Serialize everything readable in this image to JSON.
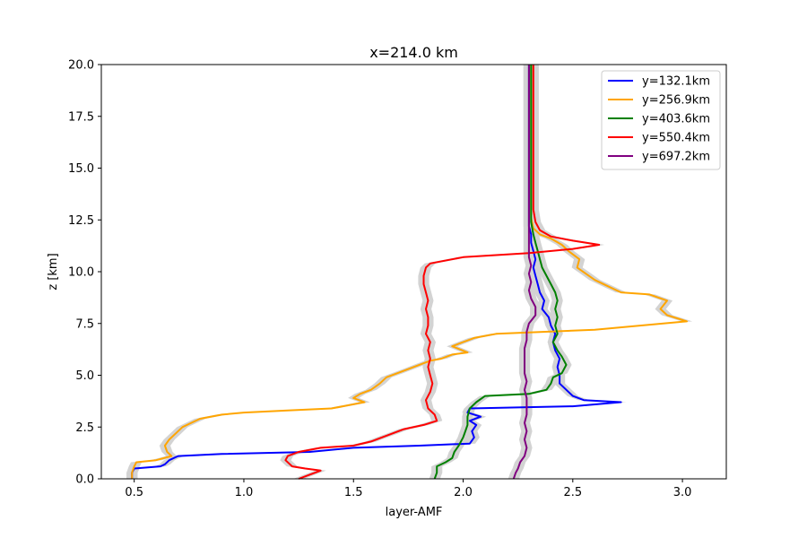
{
  "chart_data": {
    "type": "line",
    "title": "x=214.0 km",
    "xlabel": "layer-AMF",
    "ylabel": "z [km]",
    "xlim": [
      0.35,
      3.2
    ],
    "ylim": [
      0,
      20
    ],
    "xticks": [
      "0.5",
      "1.0",
      "1.5",
      "2.0",
      "2.5",
      "3.0"
    ],
    "yticks": [
      "0.0",
      "2.5",
      "5.0",
      "7.5",
      "10.0",
      "12.5",
      "15.0",
      "17.5",
      "20.0"
    ],
    "grid": false,
    "legend_position": "top-right",
    "uncertainty_band_color": "#d3d3d3",
    "series": [
      {
        "name": "y=132.1km",
        "color": "#0000ff",
        "points": [
          [
            0.49,
            0.0
          ],
          [
            0.49,
            0.3
          ],
          [
            0.5,
            0.5
          ],
          [
            0.62,
            0.6
          ],
          [
            0.64,
            0.7
          ],
          [
            0.66,
            0.9
          ],
          [
            0.7,
            1.1
          ],
          [
            0.9,
            1.2
          ],
          [
            1.3,
            1.3
          ],
          [
            1.5,
            1.5
          ],
          [
            1.8,
            1.6
          ],
          [
            2.03,
            1.7
          ],
          [
            2.05,
            2.0
          ],
          [
            2.04,
            2.3
          ],
          [
            2.06,
            2.6
          ],
          [
            2.03,
            2.8
          ],
          [
            2.08,
            3.0
          ],
          [
            2.02,
            3.2
          ],
          [
            2.03,
            3.4
          ],
          [
            2.5,
            3.5
          ],
          [
            2.72,
            3.7
          ],
          [
            2.55,
            3.8
          ],
          [
            2.5,
            4.0
          ],
          [
            2.47,
            4.3
          ],
          [
            2.44,
            4.6
          ],
          [
            2.44,
            5.0
          ],
          [
            2.43,
            5.4
          ],
          [
            2.44,
            5.8
          ],
          [
            2.42,
            6.2
          ],
          [
            2.41,
            6.6
          ],
          [
            2.42,
            7.0
          ],
          [
            2.4,
            7.4
          ],
          [
            2.39,
            7.8
          ],
          [
            2.36,
            8.2
          ],
          [
            2.37,
            8.6
          ],
          [
            2.35,
            9.0
          ],
          [
            2.34,
            9.4
          ],
          [
            2.33,
            9.8
          ],
          [
            2.32,
            10.2
          ],
          [
            2.33,
            10.6
          ],
          [
            2.32,
            11.0
          ],
          [
            2.31,
            11.4
          ],
          [
            2.31,
            11.8
          ],
          [
            2.3,
            12.2
          ],
          [
            2.3,
            13.0
          ],
          [
            2.3,
            14.0
          ],
          [
            2.3,
            15.0
          ],
          [
            2.3,
            16.0
          ],
          [
            2.3,
            17.0
          ],
          [
            2.3,
            18.0
          ],
          [
            2.3,
            19.0
          ],
          [
            2.3,
            20.0
          ]
        ]
      },
      {
        "name": "y=256.9km",
        "color": "#ffa500",
        "points": [
          [
            0.49,
            0.0
          ],
          [
            0.49,
            0.3
          ],
          [
            0.5,
            0.6
          ],
          [
            0.51,
            0.8
          ],
          [
            0.6,
            0.9
          ],
          [
            0.67,
            1.1
          ],
          [
            0.65,
            1.3
          ],
          [
            0.64,
            1.6
          ],
          [
            0.66,
            1.9
          ],
          [
            0.69,
            2.2
          ],
          [
            0.72,
            2.5
          ],
          [
            0.76,
            2.7
          ],
          [
            0.8,
            2.9
          ],
          [
            0.9,
            3.1
          ],
          [
            1.0,
            3.2
          ],
          [
            1.2,
            3.3
          ],
          [
            1.4,
            3.4
          ],
          [
            1.55,
            3.7
          ],
          [
            1.5,
            3.9
          ],
          [
            1.53,
            4.1
          ],
          [
            1.58,
            4.3
          ],
          [
            1.62,
            4.6
          ],
          [
            1.65,
            4.9
          ],
          [
            1.7,
            5.1
          ],
          [
            1.75,
            5.3
          ],
          [
            1.8,
            5.5
          ],
          [
            1.85,
            5.7
          ],
          [
            1.9,
            5.8
          ],
          [
            1.95,
            6.0
          ],
          [
            2.02,
            6.1
          ],
          [
            1.95,
            6.4
          ],
          [
            2.0,
            6.6
          ],
          [
            2.05,
            6.8
          ],
          [
            2.15,
            7.0
          ],
          [
            2.6,
            7.2
          ],
          [
            3.02,
            7.6
          ],
          [
            2.93,
            7.9
          ],
          [
            2.9,
            8.2
          ],
          [
            2.93,
            8.6
          ],
          [
            2.85,
            8.9
          ],
          [
            2.72,
            9.0
          ],
          [
            2.66,
            9.3
          ],
          [
            2.6,
            9.6
          ],
          [
            2.56,
            9.9
          ],
          [
            2.52,
            10.2
          ],
          [
            2.53,
            10.6
          ],
          [
            2.48,
            11.0
          ],
          [
            2.45,
            11.3
          ],
          [
            2.4,
            11.6
          ],
          [
            2.35,
            11.8
          ],
          [
            2.32,
            12.1
          ],
          [
            2.31,
            12.6
          ],
          [
            2.31,
            13.5
          ],
          [
            2.31,
            14.5
          ],
          [
            2.31,
            15.5
          ],
          [
            2.31,
            16.5
          ],
          [
            2.31,
            17.5
          ],
          [
            2.31,
            18.5
          ],
          [
            2.31,
            19.5
          ],
          [
            2.31,
            20.0
          ]
        ]
      },
      {
        "name": "y=403.6km",
        "color": "#008000",
        "points": [
          [
            1.87,
            0.0
          ],
          [
            1.88,
            0.3
          ],
          [
            1.88,
            0.6
          ],
          [
            1.92,
            0.8
          ],
          [
            1.95,
            1.0
          ],
          [
            1.96,
            1.3
          ],
          [
            1.98,
            1.6
          ],
          [
            2.0,
            2.0
          ],
          [
            2.01,
            2.3
          ],
          [
            2.02,
            2.6
          ],
          [
            2.02,
            3.0
          ],
          [
            2.03,
            3.4
          ],
          [
            2.06,
            3.7
          ],
          [
            2.1,
            4.0
          ],
          [
            2.3,
            4.1
          ],
          [
            2.38,
            4.3
          ],
          [
            2.4,
            4.6
          ],
          [
            2.41,
            4.9
          ],
          [
            2.45,
            5.1
          ],
          [
            2.47,
            5.5
          ],
          [
            2.45,
            5.9
          ],
          [
            2.43,
            6.2
          ],
          [
            2.41,
            6.6
          ],
          [
            2.43,
            7.0
          ],
          [
            2.42,
            7.4
          ],
          [
            2.43,
            7.8
          ],
          [
            2.42,
            8.2
          ],
          [
            2.43,
            8.6
          ],
          [
            2.42,
            9.0
          ],
          [
            2.4,
            9.4
          ],
          [
            2.38,
            9.8
          ],
          [
            2.36,
            10.2
          ],
          [
            2.35,
            10.6
          ],
          [
            2.34,
            11.0
          ],
          [
            2.33,
            11.4
          ],
          [
            2.32,
            11.8
          ],
          [
            2.31,
            12.4
          ],
          [
            2.31,
            13.2
          ],
          [
            2.31,
            14.0
          ],
          [
            2.31,
            15.0
          ],
          [
            2.31,
            16.0
          ],
          [
            2.31,
            17.0
          ],
          [
            2.31,
            18.0
          ],
          [
            2.31,
            19.0
          ],
          [
            2.31,
            20.0
          ]
        ]
      },
      {
        "name": "y=550.4km",
        "color": "#ff0000",
        "points": [
          [
            1.25,
            0.0
          ],
          [
            1.3,
            0.2
          ],
          [
            1.35,
            0.4
          ],
          [
            1.28,
            0.5
          ],
          [
            1.22,
            0.6
          ],
          [
            1.19,
            0.9
          ],
          [
            1.2,
            1.1
          ],
          [
            1.25,
            1.3
          ],
          [
            1.35,
            1.5
          ],
          [
            1.5,
            1.6
          ],
          [
            1.58,
            1.8
          ],
          [
            1.63,
            2.0
          ],
          [
            1.68,
            2.2
          ],
          [
            1.73,
            2.4
          ],
          [
            1.82,
            2.6
          ],
          [
            1.88,
            2.8
          ],
          [
            1.87,
            3.1
          ],
          [
            1.84,
            3.4
          ],
          [
            1.83,
            3.8
          ],
          [
            1.85,
            4.2
          ],
          [
            1.86,
            4.6
          ],
          [
            1.85,
            5.0
          ],
          [
            1.84,
            5.4
          ],
          [
            1.85,
            5.8
          ],
          [
            1.84,
            6.2
          ],
          [
            1.85,
            6.6
          ],
          [
            1.83,
            7.0
          ],
          [
            1.84,
            7.4
          ],
          [
            1.84,
            7.8
          ],
          [
            1.83,
            8.2
          ],
          [
            1.84,
            8.6
          ],
          [
            1.83,
            9.0
          ],
          [
            1.82,
            9.4
          ],
          [
            1.82,
            9.8
          ],
          [
            1.83,
            10.2
          ],
          [
            1.85,
            10.4
          ],
          [
            2.0,
            10.7
          ],
          [
            2.3,
            10.9
          ],
          [
            2.5,
            11.1
          ],
          [
            2.62,
            11.3
          ],
          [
            2.5,
            11.5
          ],
          [
            2.4,
            11.7
          ],
          [
            2.35,
            12.0
          ],
          [
            2.33,
            12.4
          ],
          [
            2.32,
            13.0
          ],
          [
            2.32,
            14.0
          ],
          [
            2.32,
            15.0
          ],
          [
            2.32,
            16.0
          ],
          [
            2.32,
            17.0
          ],
          [
            2.32,
            18.0
          ],
          [
            2.32,
            19.0
          ],
          [
            2.32,
            20.0
          ]
        ]
      },
      {
        "name": "y=697.2km",
        "color": "#800080",
        "points": [
          [
            2.23,
            0.0
          ],
          [
            2.24,
            0.3
          ],
          [
            2.25,
            0.5
          ],
          [
            2.26,
            0.8
          ],
          [
            2.28,
            1.1
          ],
          [
            2.29,
            1.5
          ],
          [
            2.28,
            1.9
          ],
          [
            2.29,
            2.3
          ],
          [
            2.28,
            2.7
          ],
          [
            2.29,
            3.1
          ],
          [
            2.29,
            3.5
          ],
          [
            2.29,
            3.9
          ],
          [
            2.28,
            4.3
          ],
          [
            2.29,
            4.7
          ],
          [
            2.28,
            5.1
          ],
          [
            2.28,
            5.5
          ],
          [
            2.28,
            5.9
          ],
          [
            2.28,
            6.3
          ],
          [
            2.29,
            6.7
          ],
          [
            2.29,
            7.1
          ],
          [
            2.3,
            7.5
          ],
          [
            2.33,
            7.9
          ],
          [
            2.33,
            8.3
          ],
          [
            2.31,
            8.7
          ],
          [
            2.3,
            9.1
          ],
          [
            2.31,
            9.5
          ],
          [
            2.3,
            9.9
          ],
          [
            2.31,
            10.3
          ],
          [
            2.3,
            10.7
          ],
          [
            2.3,
            11.1
          ],
          [
            2.3,
            11.5
          ],
          [
            2.3,
            12.0
          ],
          [
            2.3,
            12.8
          ],
          [
            2.3,
            13.6
          ],
          [
            2.3,
            14.5
          ],
          [
            2.3,
            15.5
          ],
          [
            2.3,
            16.5
          ],
          [
            2.3,
            17.5
          ],
          [
            2.3,
            18.5
          ],
          [
            2.3,
            19.5
          ],
          [
            2.3,
            20.0
          ]
        ]
      }
    ]
  }
}
